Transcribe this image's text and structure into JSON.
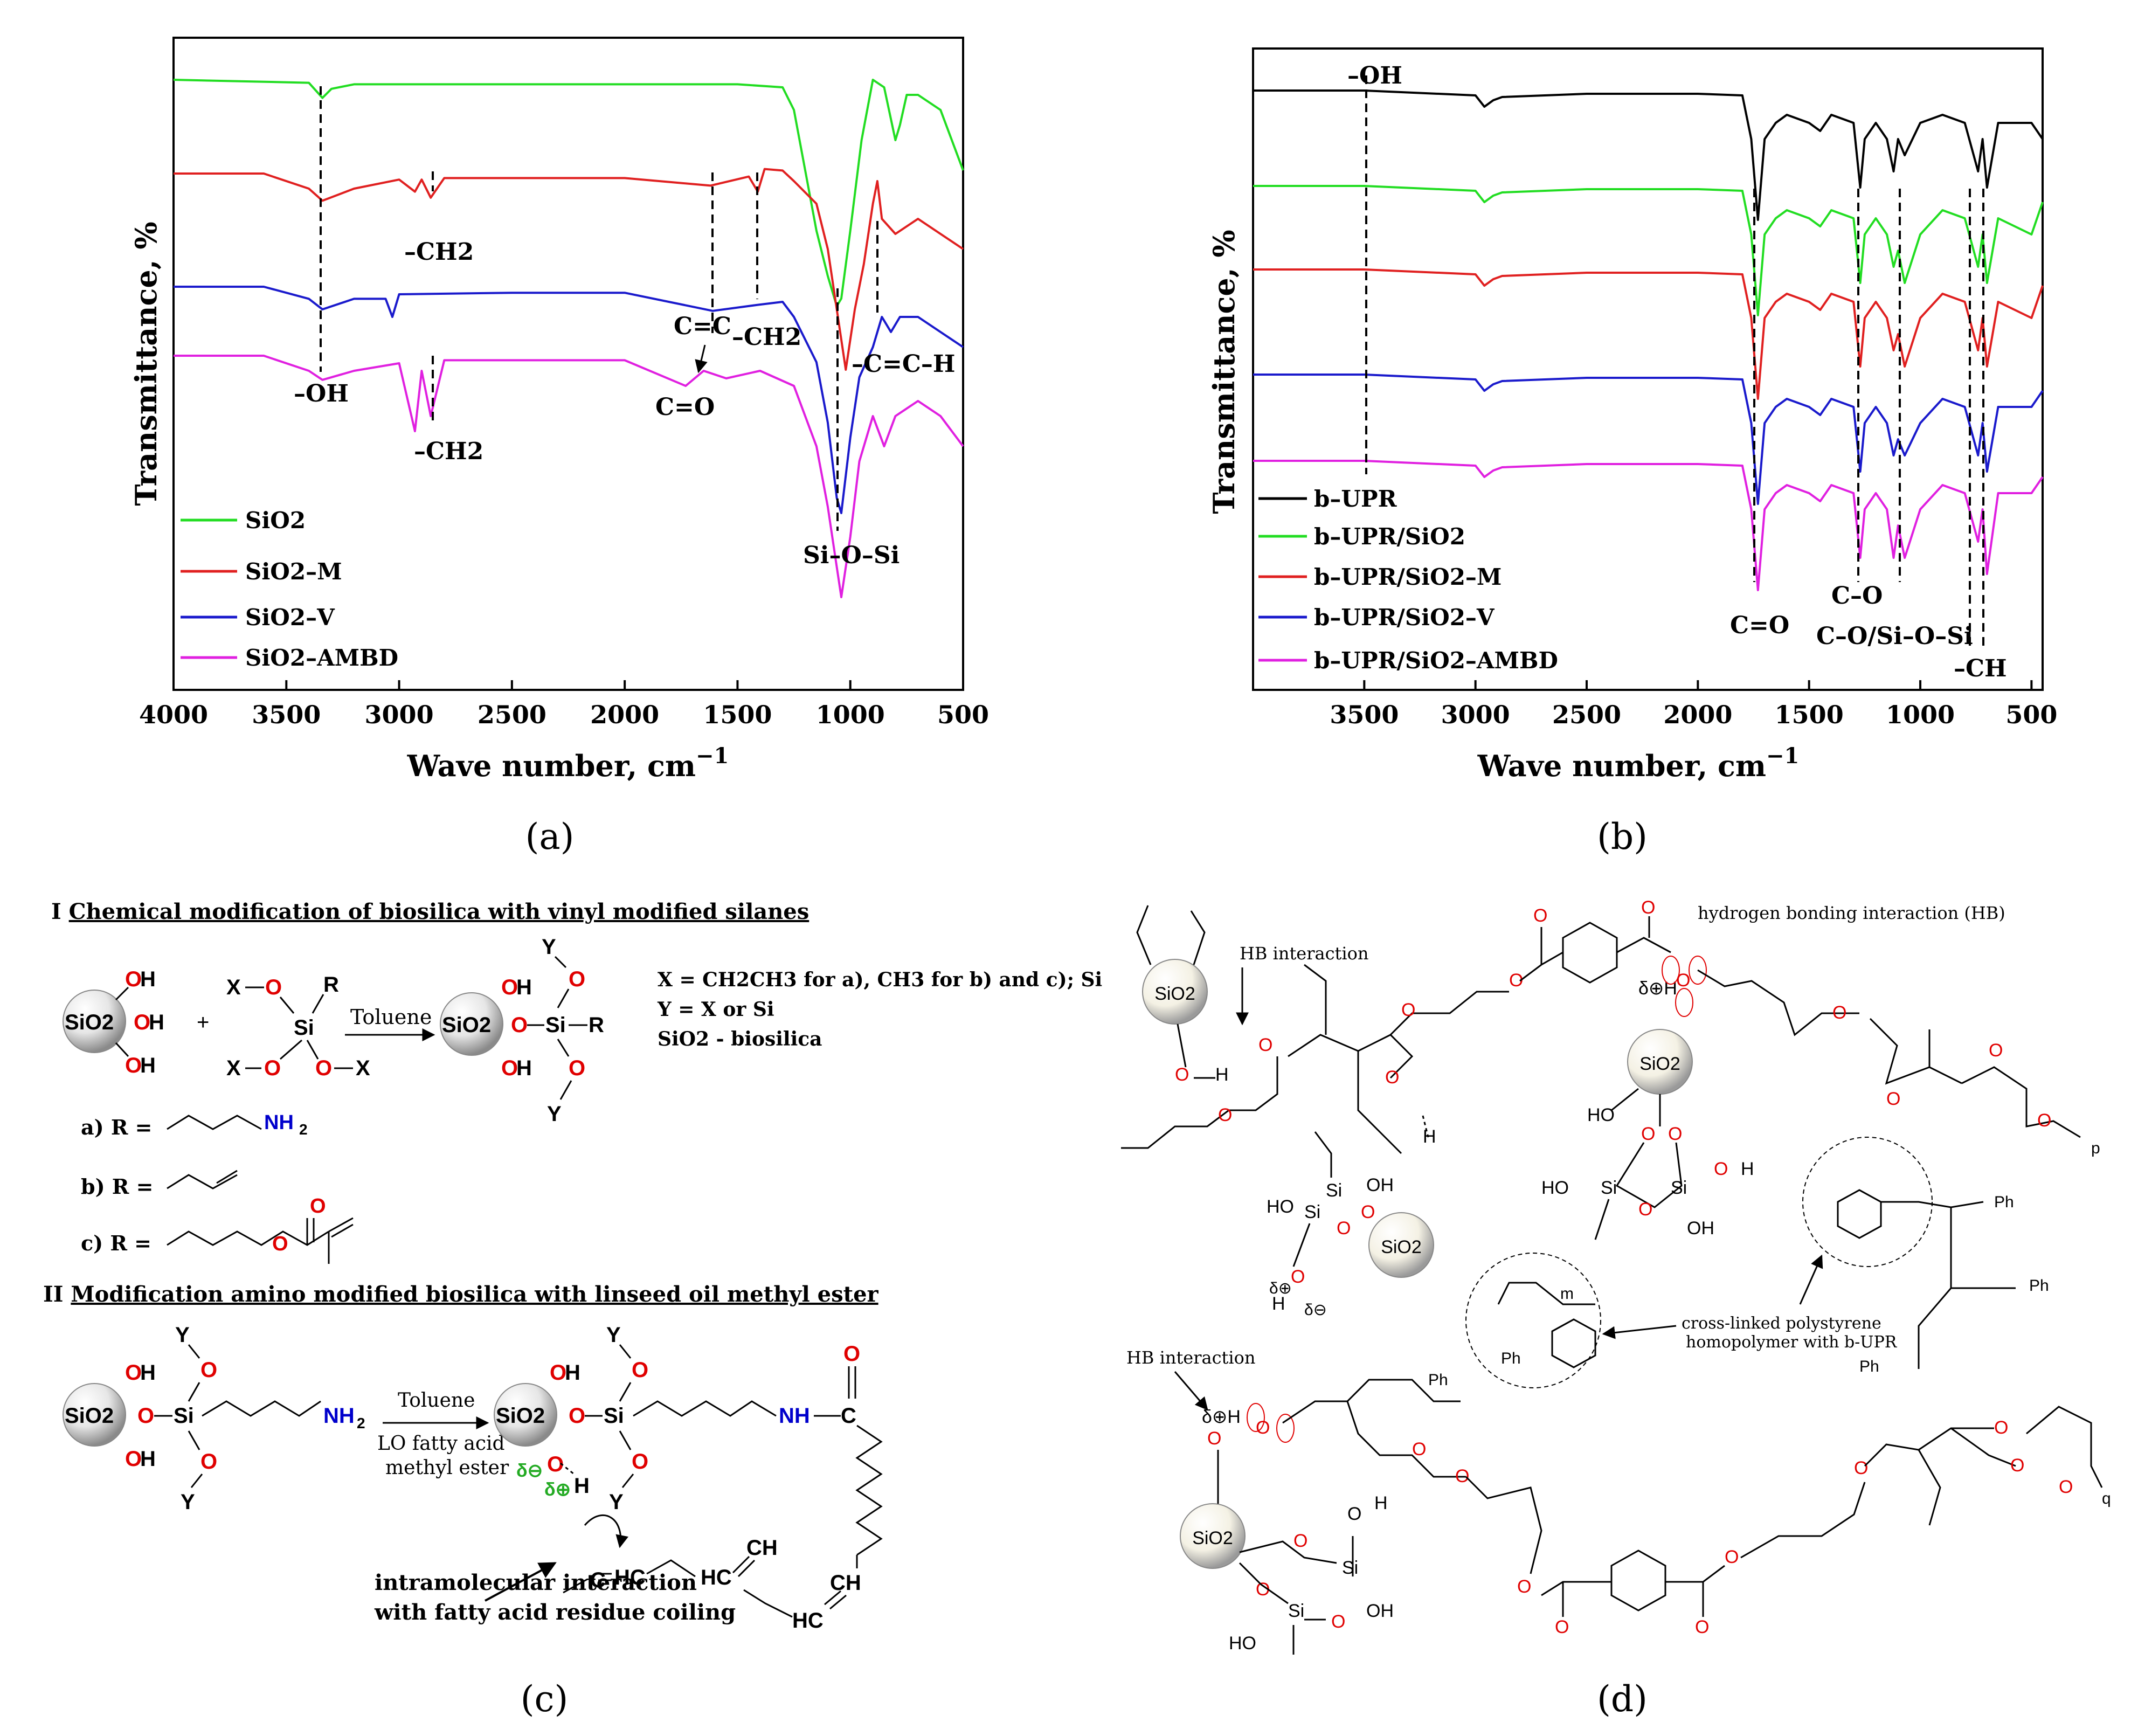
{
  "panels": {
    "a": {
      "label": "(a)",
      "letter": "a",
      "x_axis_title": "Wave number, cm",
      "x_axis_sup": "−1",
      "y_axis_title": "Transmittance, %",
      "x_ticks": [
        "4000",
        "3500",
        "3000",
        "2500",
        "2000",
        "1500",
        "1000",
        "500"
      ],
      "legend": [
        "SiO2",
        "SiO2–M",
        "SiO2–V",
        "SiO2–AMBD"
      ],
      "annotations": {
        "oh": "–OH",
        "ch2_red": "–CH2",
        "ch2_mag": "–CH2",
        "ch2_blue": "–CH2",
        "cc": "C=C",
        "co": "C=O",
        "sios": "Si–O–Si",
        "cch": "–C=C–H"
      }
    },
    "b": {
      "label": "(b)",
      "letter": "b",
      "x_axis_title": "Wave number, cm",
      "x_axis_sup": "−1",
      "y_axis_title": "Transmittance, %",
      "x_ticks": [
        "3500",
        "3000",
        "2500",
        "2000",
        "1500",
        "1000",
        "500"
      ],
      "legend": [
        "b–UPR",
        "b–UPR/SiO2",
        "b–UPR/SiO2–M",
        "b–UPR/SiO2–V",
        "b–UPR/SiO2–AMBD"
      ],
      "annotations": {
        "oh": "–OH",
        "co_double": "C=O",
        "c_o": "C–O",
        "c_o_si": "C–O/Si–O–Si",
        "ch": "–CH"
      }
    },
    "c": {
      "label": "(c)",
      "letter": "c",
      "heading1_roman": "I",
      "heading1_text": "Chemical modification of biosilica with vinyl modified silanes",
      "heading2_roman": "II",
      "heading2_text": "Modification amino modified biosilica with linseed oil methyl ester",
      "toluene1": "Toluene",
      "toluene2": "Toluene",
      "reagent_line1": "LO fatty acid",
      "reagent_line2": "methyl ester",
      "def_x": "X = CH2CH3 for a), CH3 for b) and c); Si",
      "def_y": "Y = X or Si",
      "def_sio2": "SiO2 - biosilica",
      "r_a": "a)  R =",
      "r_b": "b)  R =",
      "r_c": "c)  R =",
      "note_line1": "intramolecular interaction",
      "note_line2": "with fatty acid residue coiling",
      "sio2": "SiO2"
    },
    "d": {
      "label": "(d)",
      "letter": "d",
      "hb_label": "HB interaction",
      "hb_label2": "HB interaction",
      "hydrogen_bond": "hydrogen bonding interaction (HB)",
      "crosslink_line1": "cross-linked polystyrene",
      "crosslink_line2": "homopolymer with b-UPR",
      "sio2": "SiO2",
      "ph": "Ph",
      "m": "m",
      "p": "p",
      "q": "q"
    }
  },
  "chart_data": [
    {
      "type": "line",
      "title": "",
      "xlabel": "Wave number, cm−1",
      "ylabel": "Transmittance, %",
      "xlim": [
        4000,
        500
      ],
      "x_ticks": [
        4000,
        3500,
        3000,
        2500,
        2000,
        1500,
        1000,
        500
      ],
      "series": [
        {
          "name": "SiO2",
          "color": "#22dd22",
          "x": [
            4000,
            3400,
            3340,
            3300,
            3200,
            3000,
            2500,
            2000,
            1500,
            1300,
            1250,
            1200,
            1150,
            1100,
            1060,
            1040,
            1000,
            950,
            900,
            850,
            800,
            780,
            750,
            700,
            600,
            500
          ],
          "y": [
            0,
            -0.2,
            -1.2,
            -0.6,
            -0.3,
            -0.3,
            -0.3,
            -0.3,
            -0.3,
            -0.5,
            -2,
            -6,
            -10,
            -13,
            -15,
            -14.5,
            -10,
            -4,
            0,
            -0.5,
            -4,
            -3,
            -1,
            -1,
            -2,
            -6
          ]
        },
        {
          "name": "SiO2–M",
          "color": "#e02020",
          "x": [
            4000,
            3600,
            3400,
            3340,
            3200,
            3000,
            2930,
            2900,
            2860,
            2800,
            2500,
            2000,
            1620,
            1450,
            1410,
            1380,
            1300,
            1250,
            1150,
            1100,
            1050,
            1020,
            980,
            940,
            900,
            880,
            860,
            800,
            700,
            600,
            500
          ],
          "y": [
            0,
            0,
            -1,
            -1.8,
            -1,
            -0.4,
            -1.2,
            -0.4,
            -1.6,
            -0.3,
            -0.3,
            -0.3,
            -0.8,
            -0.2,
            -1.2,
            0.3,
            0.2,
            -0.5,
            -2,
            -5,
            -10,
            -13,
            -9,
            -6,
            -2,
            -0.5,
            -3,
            -4,
            -3,
            -4,
            -5
          ]
        },
        {
          "name": "SiO2–V",
          "color": "#1a1acc",
          "x": [
            4000,
            3600,
            3400,
            3340,
            3200,
            3060,
            3030,
            3000,
            2500,
            2000,
            1610,
            1410,
            1300,
            1250,
            1150,
            1100,
            1060,
            1040,
            1000,
            960,
            900,
            860,
            820,
            780,
            700,
            600,
            500
          ],
          "y": [
            0,
            0,
            -0.8,
            -1.5,
            -0.8,
            -0.8,
            -2,
            -0.5,
            -0.4,
            -0.4,
            -1.6,
            -1.2,
            -1,
            -2,
            -5,
            -9,
            -14,
            -15,
            -10,
            -6,
            -4,
            -2,
            -3,
            -2,
            -2,
            -3,
            -4
          ]
        },
        {
          "name": "SiO2–AMBD",
          "color": "#e020e0",
          "x": [
            4000,
            3600,
            3400,
            3340,
            3200,
            3000,
            2930,
            2900,
            2860,
            2800,
            2500,
            2000,
            1730,
            1650,
            1550,
            1400,
            1250,
            1150,
            1100,
            1060,
            1040,
            1000,
            960,
            900,
            850,
            800,
            700,
            600,
            500
          ],
          "y": [
            0,
            0,
            -1,
            -1.6,
            -1,
            -0.5,
            -5,
            -1,
            -4,
            -0.3,
            -0.3,
            -0.3,
            -2,
            -1,
            -1.5,
            -1,
            -2,
            -6,
            -10,
            -14,
            -16,
            -12,
            -7,
            -4,
            -6,
            -4,
            -3,
            -4,
            -6
          ]
        }
      ]
    },
    {
      "type": "line",
      "title": "",
      "xlabel": "Wave number, cm−1",
      "ylabel": "Transmittance, %",
      "xlim": [
        4000,
        450
      ],
      "x_ticks": [
        3500,
        3000,
        2500,
        2000,
        1500,
        1000,
        500
      ],
      "series": [
        {
          "name": "b–UPR",
          "color": "#000000",
          "x": [
            4000,
            3500,
            3000,
            2960,
            2920,
            2880,
            2500,
            2000,
            1800,
            1760,
            1730,
            1700,
            1650,
            1600,
            1500,
            1450,
            1400,
            1300,
            1270,
            1250,
            1200,
            1150,
            1120,
            1100,
            1070,
            1000,
            900,
            800,
            740,
            720,
            700,
            650,
            500,
            450
          ],
          "y": [
            0,
            0,
            -0.3,
            -1,
            -0.6,
            -0.4,
            -0.2,
            -0.2,
            -0.3,
            -3,
            -8,
            -3,
            -2,
            -1.5,
            -2,
            -2.5,
            -1.5,
            -2,
            -6,
            -3,
            -2,
            -3,
            -5,
            -3,
            -4,
            -2,
            -1.5,
            -2,
            -5,
            -3,
            -6,
            -2,
            -2,
            -3
          ]
        },
        {
          "name": "b–UPR/SiO2",
          "color": "#22dd22",
          "x": [
            4000,
            3500,
            3000,
            2960,
            2920,
            2880,
            2500,
            2000,
            1800,
            1760,
            1730,
            1700,
            1650,
            1600,
            1500,
            1450,
            1400,
            1300,
            1270,
            1250,
            1200,
            1150,
            1120,
            1100,
            1070,
            1000,
            900,
            800,
            740,
            720,
            700,
            650,
            500,
            450
          ],
          "y": [
            0,
            0,
            -0.3,
            -1,
            -0.6,
            -0.4,
            -0.2,
            -0.2,
            -0.3,
            -3,
            -8,
            -3,
            -2,
            -1.5,
            -2,
            -2.5,
            -1.5,
            -2,
            -6,
            -3,
            -2,
            -3,
            -5,
            -4,
            -6,
            -3,
            -1.5,
            -2,
            -5,
            -3,
            -6,
            -2,
            -3,
            -1
          ]
        },
        {
          "name": "b–UPR/SiO2–M",
          "color": "#e02020",
          "x": [
            4000,
            3500,
            3000,
            2960,
            2920,
            2880,
            2500,
            2000,
            1800,
            1760,
            1730,
            1700,
            1650,
            1600,
            1500,
            1450,
            1400,
            1300,
            1270,
            1250,
            1200,
            1150,
            1120,
            1100,
            1070,
            1000,
            900,
            800,
            740,
            720,
            700,
            650,
            500,
            450
          ],
          "y": [
            0,
            0,
            -0.3,
            -1,
            -0.6,
            -0.4,
            -0.2,
            -0.2,
            -0.3,
            -3,
            -8,
            -3,
            -2,
            -1.5,
            -2,
            -2.5,
            -1.5,
            -2,
            -6,
            -3,
            -2,
            -3,
            -5,
            -4,
            -6,
            -3,
            -1.5,
            -2,
            -5,
            -3,
            -6,
            -2,
            -3,
            -1
          ]
        },
        {
          "name": "b–UPR/SiO2–V",
          "color": "#1a1acc",
          "x": [
            4000,
            3500,
            3000,
            2960,
            2920,
            2880,
            2500,
            2000,
            1800,
            1760,
            1730,
            1700,
            1650,
            1600,
            1500,
            1450,
            1400,
            1300,
            1270,
            1250,
            1200,
            1150,
            1120,
            1100,
            1070,
            1000,
            900,
            800,
            740,
            720,
            700,
            650,
            500,
            450
          ],
          "y": [
            0,
            0,
            -0.3,
            -1,
            -0.6,
            -0.4,
            -0.2,
            -0.2,
            -0.3,
            -3,
            -8,
            -3,
            -2,
            -1.5,
            -2,
            -2.5,
            -1.5,
            -2,
            -6,
            -3,
            -2,
            -3,
            -5,
            -4,
            -5,
            -3,
            -1.5,
            -2,
            -5,
            -3,
            -6,
            -2,
            -2,
            -1
          ]
        },
        {
          "name": "b–UPR/SiO2–AMBD",
          "color": "#e020e0",
          "x": [
            4000,
            3500,
            3000,
            2960,
            2920,
            2880,
            2500,
            2000,
            1800,
            1760,
            1730,
            1700,
            1650,
            1600,
            1500,
            1450,
            1400,
            1300,
            1270,
            1250,
            1200,
            1150,
            1120,
            1100,
            1070,
            1000,
            900,
            800,
            740,
            720,
            700,
            650,
            500,
            450
          ],
          "y": [
            0,
            0,
            -0.3,
            -1,
            -0.6,
            -0.4,
            -0.2,
            -0.2,
            -0.3,
            -3,
            -8,
            -3,
            -2,
            -1.5,
            -2,
            -2.5,
            -1.5,
            -2,
            -6,
            -3,
            -2,
            -3,
            -6,
            -4,
            -6,
            -3,
            -1.5,
            -2,
            -5,
            -3,
            -7,
            -2,
            -2,
            -1
          ]
        }
      ]
    }
  ]
}
